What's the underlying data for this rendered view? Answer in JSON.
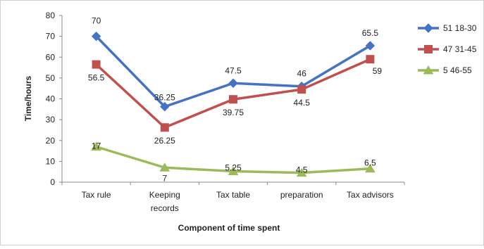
{
  "chart_data": {
    "type": "line",
    "xlabel": "Component of time spent",
    "ylabel": "Time/hours",
    "ylim": [
      0,
      80
    ],
    "yticks": [
      0,
      10,
      20,
      30,
      40,
      50,
      60,
      70,
      80
    ],
    "grid": false,
    "legend_position": "right",
    "categories": [
      [
        "Tax rule"
      ],
      [
        "Keeping",
        "records"
      ],
      [
        "Tax table"
      ],
      [
        "preparation"
      ],
      [
        "Tax advisors"
      ]
    ],
    "series": [
      {
        "name": "51 18-30",
        "values": [
          70,
          36.25,
          47.5,
          46,
          65.5
        ],
        "labels": [
          "70",
          "36.25",
          "47.5",
          "46",
          "65.5"
        ],
        "color": "#4472c4",
        "marker": "diamond"
      },
      {
        "name": "47 31-45",
        "values": [
          56.5,
          26.25,
          39.75,
          44.5,
          59
        ],
        "labels": [
          "56.5",
          "26.25",
          "39.75",
          "44.5",
          "59"
        ],
        "color": "#c0504d",
        "marker": "square"
      },
      {
        "name": "5 46-55",
        "values": [
          17,
          7,
          5.25,
          4.5,
          6.5
        ],
        "labels": [
          "17",
          "7",
          "5.25",
          "4.5",
          "6.5"
        ],
        "color": "#9bbb59",
        "marker": "triangle"
      }
    ]
  }
}
